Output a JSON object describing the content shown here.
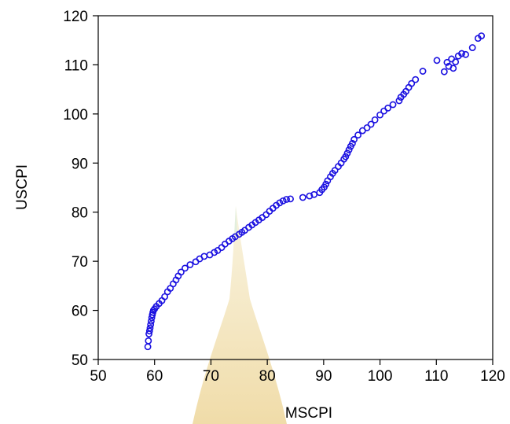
{
  "chart_data": {
    "type": "scatter",
    "title": "",
    "xlabel": "MSCPI",
    "ylabel": "USCPI",
    "xlim": [
      50,
      120
    ],
    "ylim": [
      50,
      120
    ],
    "xticks": [
      50,
      60,
      70,
      80,
      90,
      100,
      110,
      120
    ],
    "yticks": [
      50,
      60,
      70,
      80,
      90,
      100,
      110,
      120
    ],
    "grid": false,
    "legend": "none",
    "marker": "open-circle",
    "marker_color": "#1a10e0",
    "x": [
      58.8,
      58.9,
      59.0,
      59.1,
      59.2,
      59.3,
      59.4,
      59.5,
      59.6,
      59.7,
      59.8,
      60.0,
      60.3,
      60.8,
      61.3,
      61.8,
      62.3,
      62.8,
      63.3,
      63.8,
      64.2,
      64.7,
      65.4,
      66.3,
      67.3,
      68.0,
      68.8,
      69.8,
      70.6,
      71.2,
      71.9,
      72.5,
      73.2,
      73.8,
      74.3,
      75.0,
      75.5,
      76.0,
      76.7,
      77.3,
      77.9,
      78.5,
      79.1,
      79.8,
      80.4,
      81.0,
      81.6,
      82.2,
      82.8,
      83.4,
      84.1,
      86.3,
      87.5,
      88.3,
      89.3,
      89.7,
      90.1,
      90.4,
      90.7,
      91.2,
      91.6,
      92.0,
      92.6,
      93.1,
      93.6,
      93.9,
      94.2,
      94.5,
      94.8,
      95.1,
      95.4,
      96.1,
      96.9,
      97.7,
      98.4,
      99.1,
      100.0,
      100.7,
      101.4,
      102.3,
      103.4,
      103.7,
      104.2,
      104.6,
      105.1,
      105.6,
      106.3,
      107.6,
      110.1,
      111.4,
      111.9,
      112.2,
      112.7,
      113.0,
      113.4,
      113.9,
      114.5,
      115.2,
      116.4,
      117.4,
      118.0
    ],
    "y": [
      52.6,
      53.8,
      55.2,
      55.8,
      56.4,
      57.1,
      57.8,
      58.5,
      59.1,
      59.6,
      60.0,
      60.3,
      60.8,
      61.4,
      62.0,
      62.8,
      63.8,
      64.5,
      65.4,
      66.2,
      67.0,
      67.8,
      68.6,
      69.3,
      69.9,
      70.5,
      71.0,
      71.3,
      71.8,
      72.2,
      72.8,
      73.5,
      74.1,
      74.6,
      75.0,
      75.5,
      75.9,
      76.3,
      76.9,
      77.4,
      77.9,
      78.4,
      78.9,
      79.5,
      80.2,
      80.8,
      81.4,
      81.9,
      82.3,
      82.6,
      82.7,
      83.0,
      83.3,
      83.6,
      84.0,
      84.6,
      85.1,
      85.7,
      86.4,
      87.2,
      87.9,
      88.5,
      89.3,
      90.0,
      90.8,
      91.3,
      92.0,
      92.7,
      93.4,
      94.0,
      94.8,
      95.7,
      96.6,
      97.2,
      97.9,
      98.8,
      99.8,
      100.6,
      101.2,
      101.9,
      102.7,
      103.4,
      104.0,
      104.6,
      105.4,
      106.2,
      107.0,
      108.7,
      110.9,
      108.6,
      110.5,
      109.7,
      111.2,
      109.3,
      110.6,
      111.8,
      112.3,
      112.1,
      113.5,
      115.4,
      115.9
    ]
  }
}
